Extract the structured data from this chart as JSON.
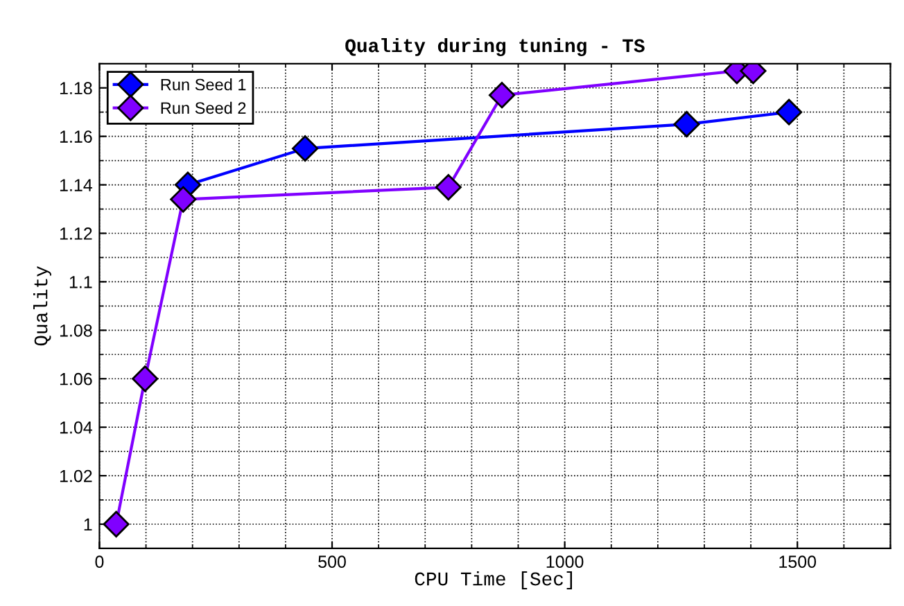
{
  "chart_data": {
    "type": "line",
    "title": "Quality during tuning - TS",
    "xlabel": "CPU Time [Sec]",
    "ylabel": "Quality",
    "series": [
      {
        "name": "Run Seed 1",
        "color": "#0000ff",
        "x": [
          190,
          442,
          1262,
          1482
        ],
        "values": [
          1.14,
          1.155,
          1.165,
          1.17
        ]
      },
      {
        "name": "Run Seed 2",
        "color": "#8000ff",
        "x": [
          36,
          98,
          180,
          750,
          865,
          1370,
          1405
        ],
        "values": [
          1.0,
          1.06,
          1.134,
          1.139,
          1.177,
          1.187,
          1.187
        ]
      }
    ],
    "xlim": [
      0,
      1700
    ],
    "xticks": [
      0,
      500,
      1000,
      1500
    ],
    "ylim": [
      0.99,
      1.19
    ],
    "yticks": [
      1,
      1.02,
      1.04,
      1.06,
      1.08,
      1.1,
      1.12,
      1.14,
      1.16,
      1.18
    ],
    "grid": true,
    "legend": "top left",
    "marker": "diamond",
    "line_style": "solid"
  }
}
